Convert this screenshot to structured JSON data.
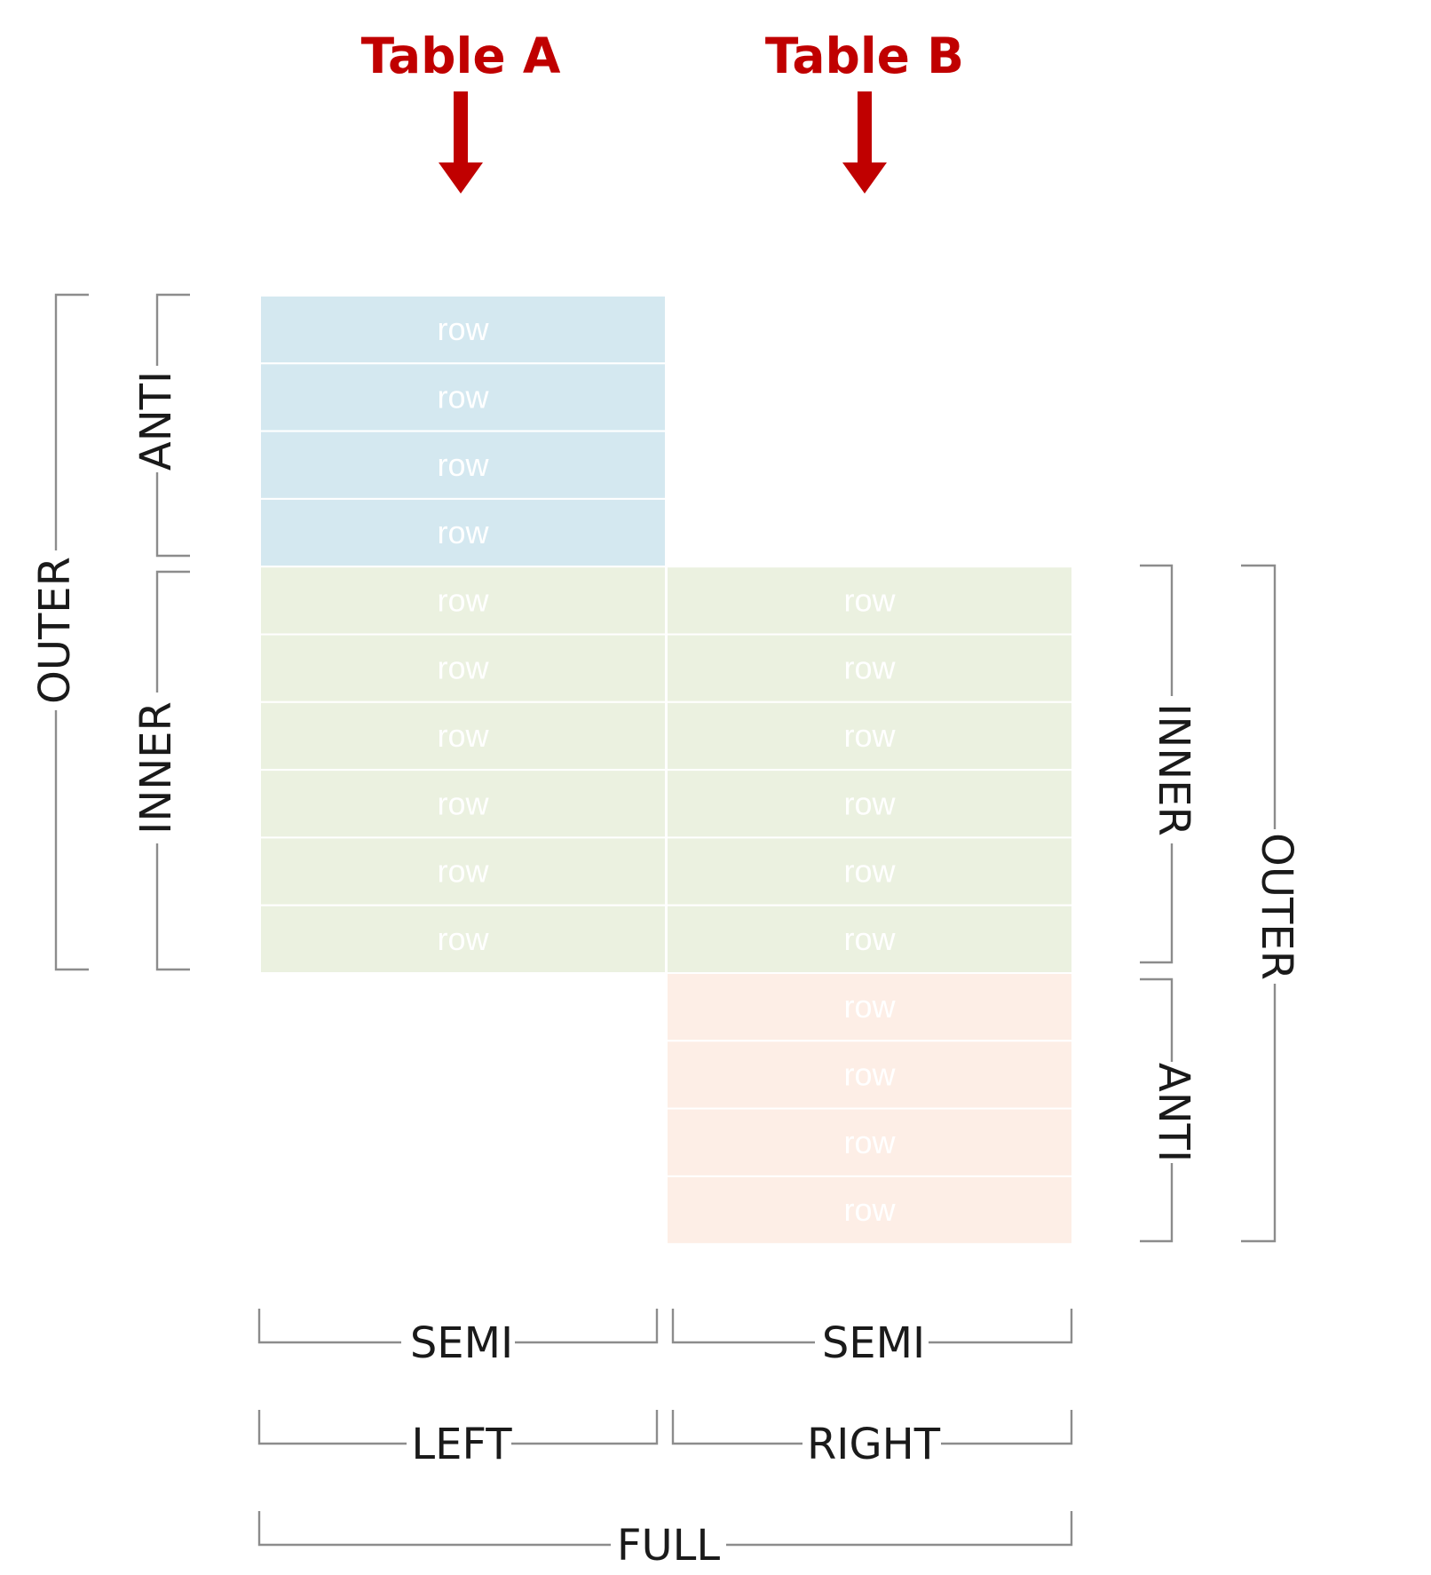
{
  "tables": {
    "a_title": "Table A",
    "b_title": "Table B"
  },
  "table_a_rows": [
    "row",
    "row",
    "row",
    "row",
    "row",
    "row",
    "row",
    "row",
    "row",
    "row"
  ],
  "table_b_rows": [
    "row",
    "row",
    "row",
    "row",
    "row",
    "row",
    "row",
    "row",
    "row",
    "row"
  ],
  "left_labels": {
    "outer": "OUTER",
    "anti": "ANTI",
    "inner": "INNER"
  },
  "right_labels": {
    "inner": "INNER",
    "outer": "OUTER",
    "anti": "ANTI"
  },
  "bottom_labels": {
    "semi_left": "SEMI",
    "semi_right": "SEMI",
    "left": "LEFT",
    "right": "RIGHT",
    "full": "FULL"
  },
  "colors": {
    "title": "#c00000",
    "table_a_only": "#d4e8f0",
    "matched": "#ebf1e0",
    "table_b_only": "#fdeee6",
    "row_divider": "#ffffff",
    "bracket": "#8c8c8c",
    "label": "#1a1a1a"
  },
  "icons": {
    "arrow_a": "down-arrow-icon",
    "arrow_b": "down-arrow-icon"
  }
}
